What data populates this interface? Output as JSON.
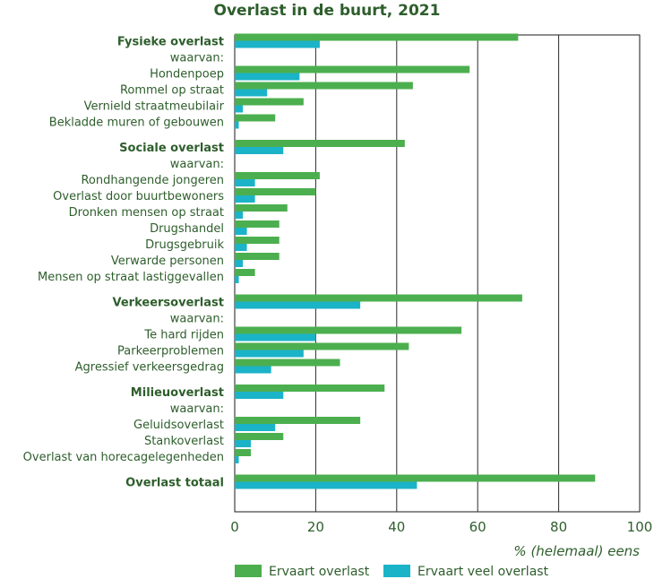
{
  "chart_data": {
    "type": "bar",
    "orientation": "horizontal",
    "title": "Overlast in de buurt, 2021",
    "xlabel": "% (helemaal) eens",
    "xlim": [
      0,
      100
    ],
    "xticks": [
      0,
      20,
      40,
      60,
      80,
      100
    ],
    "grid": true,
    "legend_position": "bottom",
    "colors": {
      "Ervaart overlast": "#4caf4f",
      "Ervaart veel overlast": "#1bb3c8"
    },
    "series": [
      {
        "name": "Ervaart overlast",
        "color": "#4caf4f"
      },
      {
        "name": "Ervaart veel overlast",
        "color": "#1bb3c8"
      }
    ],
    "rows": [
      {
        "label": "Fysieke overlast",
        "bold": true,
        "values": [
          70,
          21
        ]
      },
      {
        "label": "waarvan:",
        "values": null
      },
      {
        "label": "Hondenpoep",
        "values": [
          58,
          16
        ]
      },
      {
        "label": "Rommel op straat",
        "values": [
          44,
          8
        ]
      },
      {
        "label": "Vernield straatmeubilair",
        "values": [
          17,
          2
        ]
      },
      {
        "label": "Bekladde muren of gebouwen",
        "values": [
          10,
          1
        ]
      },
      {
        "label": "Sociale overlast",
        "bold": true,
        "values": [
          42,
          12
        ]
      },
      {
        "label": "waarvan:",
        "values": null
      },
      {
        "label": "Rondhangende jongeren",
        "values": [
          21,
          5
        ]
      },
      {
        "label": "Overlast door buurtbewoners",
        "values": [
          20,
          5
        ]
      },
      {
        "label": "Dronken mensen op straat",
        "values": [
          13,
          2
        ]
      },
      {
        "label": "Drugshandel",
        "values": [
          11,
          3
        ]
      },
      {
        "label": "Drugsgebruik",
        "values": [
          11,
          3
        ]
      },
      {
        "label": "Verwarde personen",
        "values": [
          11,
          2
        ]
      },
      {
        "label": "Mensen op straat lastiggevallen",
        "values": [
          5,
          1
        ]
      },
      {
        "label": "Verkeersoverlast",
        "bold": true,
        "values": [
          71,
          31
        ]
      },
      {
        "label": "waarvan:",
        "values": null
      },
      {
        "label": "Te hard rijden",
        "values": [
          56,
          20
        ]
      },
      {
        "label": "Parkeerproblemen",
        "values": [
          43,
          17
        ]
      },
      {
        "label": "Agressief verkeersgedrag",
        "values": [
          26,
          9
        ]
      },
      {
        "label": "Milieuoverlast",
        "bold": true,
        "values": [
          37,
          12
        ]
      },
      {
        "label": "waarvan:",
        "values": null
      },
      {
        "label": "Geluidsoverlast",
        "values": [
          31,
          10
        ]
      },
      {
        "label": "Stankoverlast",
        "values": [
          12,
          4
        ]
      },
      {
        "label": "Overlast van horecagelegenheden",
        "values": [
          4,
          1
        ]
      },
      {
        "label": "Overlast totaal",
        "bold": true,
        "values": [
          89,
          45
        ]
      }
    ]
  }
}
